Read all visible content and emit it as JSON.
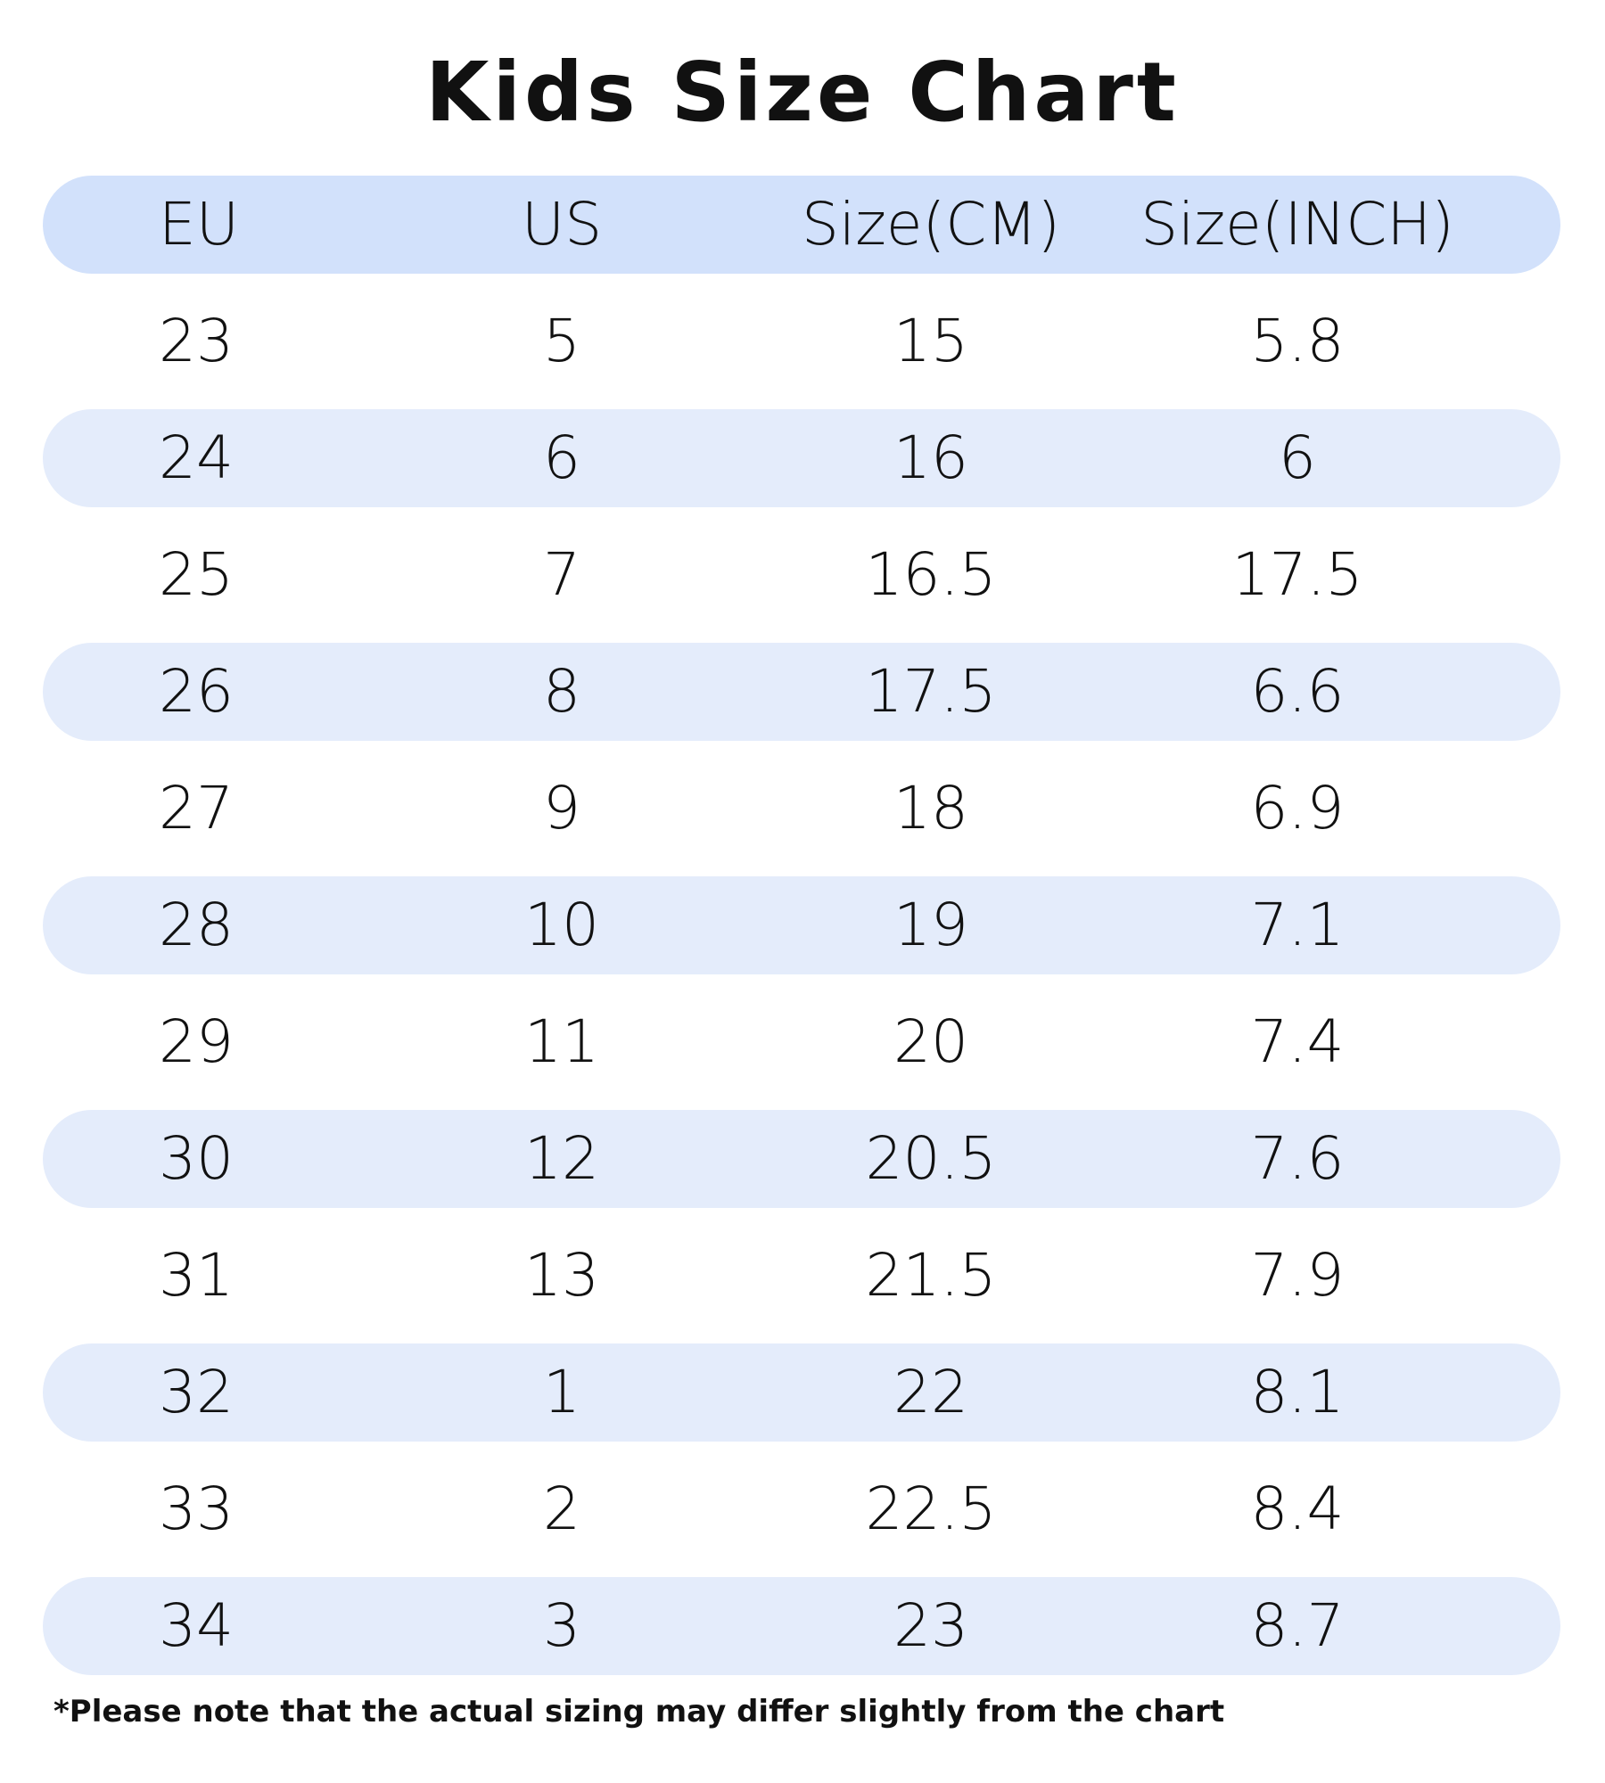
{
  "header": {
    "title": "Kids Size Chart"
  },
  "table": {
    "columns": [
      "EU",
      "US",
      "Size(CM)",
      "Size(INCH)"
    ],
    "rows": [
      [
        "23",
        "5",
        "15",
        "5.8"
      ],
      [
        "24",
        "6",
        "16",
        "6"
      ],
      [
        "25",
        "7",
        "16.5",
        "17.5"
      ],
      [
        "26",
        "8",
        "17.5",
        "6.6"
      ],
      [
        "27",
        "9",
        "18",
        "6.9"
      ],
      [
        "28",
        "10",
        "19",
        "7.1"
      ],
      [
        "29",
        "11",
        "20",
        "7.4"
      ],
      [
        "30",
        "12",
        "20.5",
        "7.6"
      ],
      [
        "31",
        "13",
        "21.5",
        "7.9"
      ],
      [
        "32",
        "1",
        "22",
        "8.1"
      ],
      [
        "33",
        "2",
        "22.5",
        "8.4"
      ],
      [
        "34",
        "3",
        "23",
        "8.7"
      ]
    ]
  },
  "note": "*Please note that the actual sizing may differ slightly from the chart"
}
